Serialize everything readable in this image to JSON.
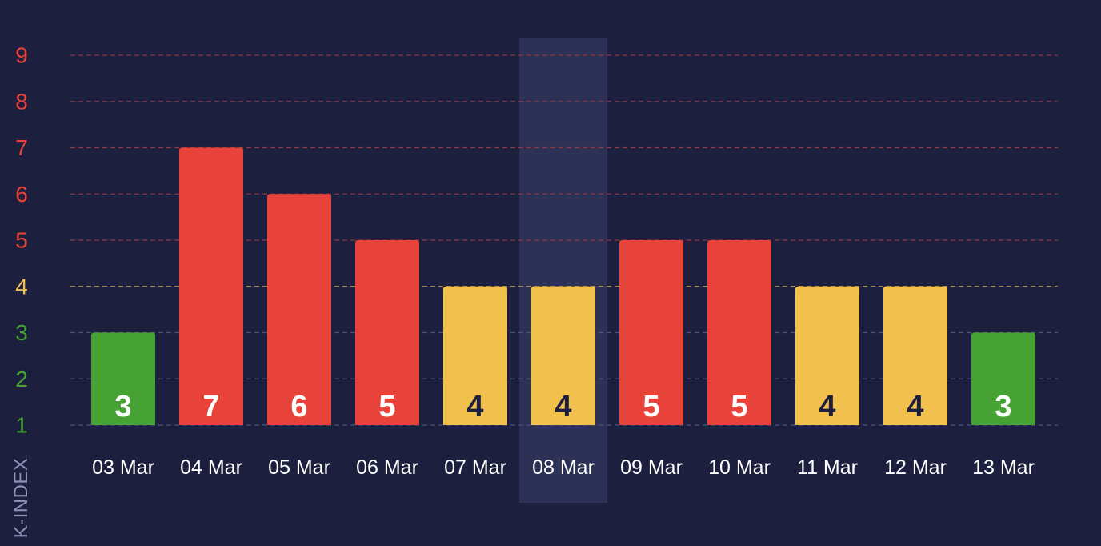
{
  "chart_data": {
    "type": "bar",
    "title": "",
    "xlabel": "",
    "ylabel": "K-INDEX",
    "ylim": [
      1,
      9
    ],
    "yticks": [
      1,
      2,
      3,
      4,
      5,
      6,
      7,
      8,
      9
    ],
    "grid": true,
    "highlighted_category": "08 Mar",
    "categories": [
      "03 Mar",
      "04 Mar",
      "05 Mar",
      "06 Mar",
      "07 Mar",
      "08 Mar",
      "09 Mar",
      "10 Mar",
      "11 Mar",
      "12 Mar",
      "13 Mar"
    ],
    "values": [
      3,
      7,
      6,
      5,
      4,
      4,
      5,
      5,
      4,
      4,
      3
    ],
    "value_labels": [
      "3",
      "7",
      "6",
      "5",
      "4",
      "4",
      "5",
      "5",
      "4",
      "4",
      "3"
    ],
    "colors": {
      "background": "#1c1f3e",
      "highlight_band": "#2d3155",
      "quiet": "#46a232",
      "active": "#f2c04c",
      "storm": "#e8433a",
      "tick_quiet": "#46a232",
      "tick_active": "#f2c04c",
      "tick_storm": "#e8433a",
      "grid_quiet": "#4d5379",
      "grid_active": "#b49a4e",
      "grid_storm": "#8e3844",
      "label_light": "#ffffff",
      "label_dark": "#1c1f3e",
      "x_label": "#ffffff",
      "axis_title": "#8f93b8"
    }
  }
}
